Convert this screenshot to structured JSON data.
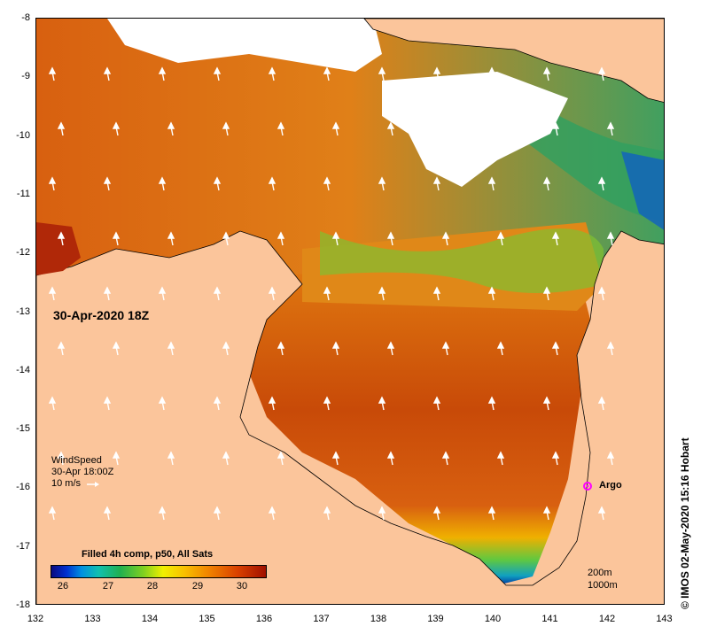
{
  "map": {
    "lon_ticks": [
      "132",
      "133",
      "134",
      "135",
      "136",
      "137",
      "138",
      "139",
      "140",
      "141",
      "142",
      "143"
    ],
    "lat_ticks": [
      "-8",
      "-9",
      "-10",
      "-11",
      "-12",
      "-13",
      "-14",
      "-15",
      "-16",
      "-17",
      "-18"
    ],
    "date_label": "30-Apr-2020 18Z",
    "land_color": "#fbc59b",
    "cloud_color": "#ffffff"
  },
  "wind_legend": {
    "line1": "WindSpeed",
    "line2": "30-Apr 18:00Z",
    "line3": "10 m/s"
  },
  "argo": {
    "label": "Argo",
    "color": "#ff00ff"
  },
  "colorbar": {
    "title": "Filled 4h comp, p50, All Sats",
    "ticks": [
      "26",
      "27",
      "28",
      "29",
      "30"
    ]
  },
  "depth_legend": {
    "line1": "200m",
    "line2": "1000m"
  },
  "credit": "© IMOS 02-May-2020 15:16 Hobart"
}
